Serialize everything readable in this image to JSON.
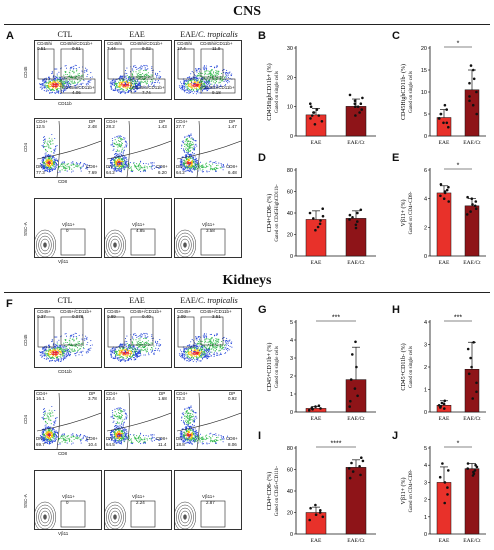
{
  "sections": {
    "cns_title": "CNS",
    "kidneys_title": "Kidneys"
  },
  "panel_letters": {
    "A": "A",
    "B": "B",
    "C": "C",
    "D": "D",
    "E": "E",
    "F": "F",
    "G": "G",
    "H": "H",
    "I": "I",
    "J": "J"
  },
  "flow_columns": {
    "ctl": "CTL",
    "eae": "EAE",
    "eae_ct_prefix": "EAE/",
    "eae_ct_italic": "C. tropicalis"
  },
  "flow_axes": {
    "cd45": "CD45",
    "cd11b": "CD11b",
    "cd4": "CD4",
    "cd8": "CD8",
    "ssc": "SSC-A",
    "vb11": "Vβ11"
  },
  "flow_cns": {
    "row1": [
      {
        "tl_label": "CD45hi",
        "tl_value": "0.51",
        "tr_label": "CD45hi/CD11b+",
        "tr_value": "0.61",
        "br_label": "CD45lo/CD11b+",
        "br_value": "4.06"
      },
      {
        "tl_label": "CD45hi",
        "tl_value": "7.44",
        "tr_label": "CD45hi/CD11b+",
        "tr_value": "9.02",
        "br_label": "CD45lo/CD11b+",
        "br_value": "7.74"
      },
      {
        "tl_label": "CD45hi",
        "tl_value": "17.4",
        "tr_label": "CD45hi/CD11b+",
        "tr_value": "11.9",
        "br_label": "CD45lo/CD11b+",
        "br_value": "9.18"
      }
    ],
    "row2": [
      {
        "cd4_label": "CD4+",
        "cd4": "12.5",
        "dp_label": "DP",
        "dp": "2.48",
        "dn_label": "DN",
        "dn": "77.3",
        "cd8_label": "CD8+",
        "cd8": "7.69"
      },
      {
        "cd4_label": "CD4+",
        "cd4": "28.2",
        "dp_label": "DP",
        "dp": "1.43",
        "dn_label": "DN",
        "dn": "64.2",
        "cd8_label": "CD8+",
        "cd8": "6.20"
      },
      {
        "cd4_label": "CD4+",
        "cd4": "27.7",
        "dp_label": "DP",
        "dp": "1.47",
        "dn_label": "DN",
        "dn": "64.2",
        "cd8_label": "CD8+",
        "cd8": "6.48"
      }
    ],
    "row3": [
      {
        "label": "Vβ11+",
        "value": "0"
      },
      {
        "label": "Vβ11+",
        "value": "4.85"
      },
      {
        "label": "Vβ11+",
        "value": "3.58"
      }
    ]
  },
  "flow_kid": {
    "row1": [
      {
        "tl_label": "CD45+",
        "tl_value": "0.37",
        "tr_label": "CD45+/CD11b+",
        "tr_value": "0.078"
      },
      {
        "tl_label": "CD45+",
        "tl_value": "0.89",
        "tr_label": "CD45+/CD11b+",
        "tr_value": "0.40"
      },
      {
        "tl_label": "CD45+",
        "tl_value": "2.09",
        "tr_label": "CD45+/CD11b+",
        "tr_value": "3.51"
      }
    ],
    "row2": [
      {
        "cd4_label": "CD4+",
        "cd4": "16.1",
        "dp_label": "DP",
        "dp": "3.78",
        "dn_label": "DN",
        "dn": "69.7",
        "cd8_label": "CD8+",
        "cd8": "10.4"
      },
      {
        "cd4_label": "CD4+",
        "cd4": "22.4",
        "dp_label": "DP",
        "dp": "1.68",
        "dn_label": "DN",
        "dn": "64.5",
        "cd8_label": "CD8+",
        "cd8": "11.4"
      },
      {
        "cd4_label": "CD4+",
        "cd4": "72.3",
        "dp_label": "DP",
        "dp": "0.92",
        "dn_label": "DN",
        "dn": "18.8",
        "cd8_label": "CD8+",
        "cd8": "8.06"
      }
    ],
    "row3": [
      {
        "label": "Vβ11+",
        "value": "0"
      },
      {
        "label": "Vβ11+",
        "value": "2.24"
      },
      {
        "label": "Vβ11+",
        "value": "2.87"
      }
    ]
  },
  "colors": {
    "eae_bar": "#e8312a",
    "eae_ct_bar": "#8e1418",
    "point": "#111111"
  },
  "chart_data": [
    {
      "id": "B",
      "type": "bar",
      "categories": [
        "EAE",
        "EAE/Ct"
      ],
      "values": [
        7.2,
        10.1
      ],
      "errors": [
        2.2,
        2.5
      ],
      "ylim": [
        0,
        30
      ],
      "yticks": [
        0,
        10,
        20,
        30
      ],
      "ylabel": "CD45HighCD11b+ (%)",
      "ysublabel": "Gated on single cells",
      "significance": "",
      "points": [
        [
          4,
          5,
          6,
          7,
          7,
          8,
          8,
          9,
          10,
          11
        ],
        [
          7,
          8,
          9,
          10,
          10,
          11,
          11,
          12,
          13,
          14
        ]
      ]
    },
    {
      "id": "C",
      "type": "bar",
      "categories": [
        "EAE",
        "EAE/Ct"
      ],
      "values": [
        4.2,
        10.5
      ],
      "errors": [
        1.8,
        4.5
      ],
      "ylim": [
        0,
        20
      ],
      "yticks": [
        0,
        5,
        10,
        15,
        20
      ],
      "ylabel": "CD45HighCD11b- (%)",
      "ysublabel": "Gated on single cells",
      "significance": "*",
      "points": [
        [
          2,
          3,
          3,
          4,
          4,
          5,
          5,
          6,
          7
        ],
        [
          5,
          7,
          8,
          9,
          10,
          12,
          13,
          15,
          16
        ]
      ]
    },
    {
      "id": "D",
      "type": "bar",
      "categories": [
        "EAE",
        "EAE/Ct"
      ],
      "values": [
        34,
        35
      ],
      "errors": [
        8,
        7
      ],
      "ylim": [
        0,
        80
      ],
      "yticks": [
        0,
        20,
        40,
        60,
        80
      ],
      "ylabel": "CD4+CD8- (%)",
      "ysublabel": "Gated on CD45HighCD11b-",
      "significance": "",
      "points": [
        [
          24,
          27,
          30,
          33,
          35,
          37,
          40,
          44
        ],
        [
          26,
          29,
          32,
          34,
          36,
          38,
          40,
          43
        ]
      ]
    },
    {
      "id": "E",
      "type": "bar",
      "categories": [
        "EAE",
        "EAE/Ct"
      ],
      "values": [
        4.4,
        3.5
      ],
      "errors": [
        0.5,
        0.5
      ],
      "ylim": [
        0,
        6
      ],
      "yticks": [
        0,
        2,
        4,
        6
      ],
      "ylabel": "Vβ11+ (%)",
      "ysublabel": "Gated on CD4+CD8-",
      "significance": "*",
      "points": [
        [
          3.8,
          4.0,
          4.2,
          4.4,
          4.5,
          4.6,
          4.8,
          5.0
        ],
        [
          2.9,
          3.1,
          3.3,
          3.5,
          3.6,
          3.8,
          4.0,
          4.1
        ]
      ]
    },
    {
      "id": "G",
      "type": "bar",
      "categories": [
        "EAE",
        "EAE/Ct"
      ],
      "values": [
        0.2,
        1.8
      ],
      "errors": [
        0.1,
        1.8
      ],
      "ylim": [
        0,
        5
      ],
      "yticks": [
        0,
        1,
        2,
        3,
        4,
        5
      ],
      "ylabel": "CD45+CD11b+ (%)",
      "ysublabel": "Gated on single cells",
      "significance": "***",
      "points": [
        [
          0.1,
          0.15,
          0.2,
          0.2,
          0.25,
          0.3,
          0.35
        ],
        [
          0.3,
          0.6,
          0.9,
          1.3,
          1.8,
          2.5,
          3.2,
          3.9
        ]
      ]
    },
    {
      "id": "H",
      "type": "bar",
      "categories": [
        "EAE",
        "EAE/Ct"
      ],
      "values": [
        0.3,
        1.9
      ],
      "errors": [
        0.2,
        1.2
      ],
      "ylim": [
        0,
        4
      ],
      "yticks": [
        0,
        1,
        2,
        3,
        4
      ],
      "ylabel": "CD45+CD11b- (%)",
      "ysublabel": "Gated on single cells",
      "significance": "***",
      "points": [
        [
          0.15,
          0.2,
          0.25,
          0.3,
          0.35,
          0.4,
          0.5
        ],
        [
          0.6,
          0.9,
          1.3,
          1.7,
          2.0,
          2.4,
          2.8,
          3.1
        ]
      ]
    },
    {
      "id": "I",
      "type": "bar",
      "categories": [
        "EAE",
        "EAE/Ct"
      ],
      "values": [
        20,
        62
      ],
      "errors": [
        5,
        7
      ],
      "ylim": [
        0,
        80
      ],
      "yticks": [
        0,
        20,
        40,
        60,
        80
      ],
      "ylabel": "CD4+CD8- (%)",
      "ysublabel": "Gated on CD45+CD11b-",
      "significance": "****",
      "points": [
        [
          13,
          16,
          18,
          20,
          22,
          24,
          27
        ],
        [
          52,
          55,
          58,
          61,
          63,
          66,
          68,
          71
        ]
      ]
    },
    {
      "id": "J",
      "type": "bar",
      "categories": [
        "EAE",
        "EAE/Ct"
      ],
      "values": [
        3.0,
        3.8
      ],
      "errors": [
        0.9,
        0.3
      ],
      "ylim": [
        0,
        5
      ],
      "yticks": [
        0,
        1,
        2,
        3,
        4,
        5
      ],
      "ylabel": "Vβ11+ (%)",
      "ysublabel": "Gated on CD4+CD8-",
      "significance": "*",
      "points": [
        [
          1.8,
          2.3,
          2.7,
          3.0,
          3.3,
          3.7,
          4.1
        ],
        [
          3.4,
          3.5,
          3.6,
          3.7,
          3.8,
          3.9,
          4.0,
          4.1
        ]
      ]
    }
  ]
}
